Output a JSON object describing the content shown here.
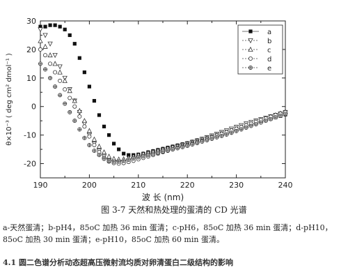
{
  "chart_data": {
    "type": "scatter",
    "xlabel": "波 长 (nm)",
    "ylabel": "θ×10⁻³ ( deg cm² dmol⁻¹ )",
    "xlim": [
      190,
      240
    ],
    "ylim": [
      -25,
      30
    ],
    "xticks": [
      "190",
      "200",
      "210",
      "220",
      "230",
      "240"
    ],
    "yticks": [
      "30",
      "20",
      "10",
      "0",
      "-10",
      "-20"
    ],
    "grid": false,
    "legend_position": "top-right",
    "series": [
      {
        "name": "a",
        "marker": "square-filled",
        "x": [
          190,
          191,
          192,
          193,
          194,
          195,
          196,
          197,
          198,
          199,
          200,
          201,
          202,
          203,
          204,
          205,
          206,
          207,
          208,
          209,
          210,
          211,
          212,
          213,
          214,
          215,
          216,
          217,
          218,
          219,
          220,
          221,
          222,
          223,
          224,
          225,
          226,
          227,
          228,
          229,
          230,
          231,
          232,
          233,
          234,
          235,
          236,
          237,
          238,
          239,
          240
        ],
        "y": [
          28,
          28,
          28.5,
          28.5,
          28,
          27,
          25,
          22,
          17,
          12,
          7,
          2,
          -3,
          -7,
          -10,
          -13,
          -15,
          -16.5,
          -17,
          -17,
          -16.8,
          -16.5,
          -16,
          -15.6,
          -15.2,
          -14.8,
          -14.4,
          -14,
          -13.6,
          -13.2,
          -12.8,
          -12.3,
          -11.8,
          -11.3,
          -10.8,
          -10.3,
          -9.8,
          -9.3,
          -8.8,
          -8.3,
          -7.8,
          -7.3,
          -6.8,
          -6.3,
          -5.8,
          -5.3,
          -4.8,
          -4.3,
          -3.8,
          -3.3,
          -2.8
        ]
      },
      {
        "name": "b",
        "marker": "triangle-down-open",
        "x": [
          190,
          191,
          192,
          193,
          194,
          195,
          196,
          197,
          198,
          199,
          200,
          201,
          202,
          203,
          204,
          205,
          206,
          207,
          208,
          209,
          210,
          211,
          212,
          213,
          214,
          215,
          216,
          217,
          218,
          219,
          220,
          221,
          222,
          223,
          224,
          225,
          226,
          227,
          228,
          229,
          230,
          231,
          232,
          233,
          234,
          235,
          236,
          237,
          238,
          239,
          240
        ],
        "y": [
          27,
          25,
          22,
          18,
          14,
          10,
          6,
          2,
          -2,
          -6,
          -10,
          -13,
          -15.5,
          -17.5,
          -19,
          -19.5,
          -19.6,
          -19.5,
          -19,
          -18.5,
          -18,
          -17.5,
          -17,
          -16.5,
          -16,
          -15.5,
          -15,
          -14.5,
          -14,
          -13.5,
          -13,
          -12.5,
          -12,
          -11.4,
          -10.8,
          -10.2,
          -9.6,
          -9,
          -8.4,
          -7.8,
          -7.2,
          -6.6,
          -6,
          -5.5,
          -5,
          -4.5,
          -4,
          -3.5,
          -3,
          -2.5,
          -2
        ]
      },
      {
        "name": "c",
        "marker": "triangle-up-open",
        "x": [
          190,
          191,
          192,
          193,
          194,
          195,
          196,
          197,
          198,
          199,
          200,
          201,
          202,
          203,
          204,
          205,
          206,
          207,
          208,
          209,
          210,
          211,
          212,
          213,
          214,
          215,
          216,
          217,
          218,
          219,
          220,
          221,
          222,
          223,
          224,
          225,
          226,
          227,
          228,
          229,
          230,
          231,
          232,
          233,
          234,
          235,
          236,
          237,
          238,
          239,
          240
        ],
        "y": [
          23,
          21,
          18,
          15,
          12,
          9,
          5.5,
          2,
          -1.5,
          -5,
          -8.5,
          -11.5,
          -14,
          -16,
          -17.5,
          -18.3,
          -18.5,
          -18.4,
          -18,
          -17.5,
          -17,
          -16.6,
          -16.2,
          -15.8,
          -15.4,
          -15,
          -14.6,
          -14.2,
          -13.8,
          -13.4,
          -13,
          -12.5,
          -12,
          -11.5,
          -11,
          -10.5,
          -10,
          -9.5,
          -9,
          -8.4,
          -7.8,
          -7.2,
          -6.6,
          -6,
          -5.4,
          -4.8,
          -4.2,
          -3.6,
          -3,
          -2.4,
          -1.8
        ]
      },
      {
        "name": "d",
        "marker": "circle-open",
        "x": [
          190,
          191,
          192,
          193,
          194,
          195,
          196,
          197,
          198,
          199,
          200,
          201,
          202,
          203,
          204,
          205,
          206,
          207,
          208,
          209,
          210,
          211,
          212,
          213,
          214,
          215,
          216,
          217,
          218,
          219,
          220,
          221,
          222,
          223,
          224,
          225,
          226,
          227,
          228,
          229,
          230,
          231,
          232,
          233,
          234,
          235,
          236,
          237,
          238,
          239,
          240
        ],
        "y": [
          20,
          18,
          15,
          12,
          9,
          6,
          3,
          0,
          -3.5,
          -7,
          -10.5,
          -13.5,
          -16,
          -18,
          -19.3,
          -19.8,
          -20,
          -19.8,
          -19.4,
          -19,
          -18.5,
          -18,
          -17.5,
          -17,
          -16.5,
          -16,
          -15.5,
          -15,
          -14.5,
          -14,
          -13.5,
          -13,
          -12.5,
          -12,
          -11.4,
          -10.8,
          -10.2,
          -9.6,
          -9,
          -8.4,
          -7.8,
          -7.2,
          -6.6,
          -6,
          -5.4,
          -4.8,
          -4.2,
          -3.6,
          -3,
          -2.5,
          -2
        ]
      },
      {
        "name": "e",
        "marker": "cross-circle",
        "x": [
          190,
          191,
          192,
          193,
          194,
          195,
          196,
          197,
          198,
          199,
          200,
          201,
          202,
          203,
          204,
          205,
          206,
          207,
          208,
          209,
          210,
          211,
          212,
          213,
          214,
          215,
          216,
          217,
          218,
          219,
          220,
          221,
          222,
          223,
          224,
          225,
          226,
          227,
          228,
          229,
          230,
          231,
          232,
          233,
          234,
          235,
          236,
          237,
          238,
          239,
          240
        ],
        "y": [
          15,
          13,
          10,
          7,
          4,
          1,
          -2,
          -5,
          -8,
          -11,
          -13.5,
          -15.5,
          -17,
          -18.3,
          -19,
          -19.3,
          -19.3,
          -19,
          -18.6,
          -18.2,
          -17.8,
          -17.4,
          -17,
          -16.6,
          -16.2,
          -15.8,
          -15.4,
          -15,
          -14.6,
          -14.2,
          -13.8,
          -13.3,
          -12.8,
          -12.3,
          -11.8,
          -11.3,
          -10.8,
          -10.3,
          -9.8,
          -9.2,
          -8.6,
          -8,
          -7.4,
          -6.8,
          -6.2,
          -5.6,
          -5,
          -4.4,
          -3.8,
          -3.2,
          -2.6
        ]
      }
    ]
  },
  "caption": "图 3-7 天然和热处理的蛋清的 CD 光谱",
  "legend_description": "a-天然蛋清；b-pH4，85oC 加热 36 min 蛋清；c-pH6，85oC 加热 36 min 蛋清；d-pH10，85oC 加热 30 min 蛋清；e-pH10，85oC 加热 60 min 蛋清。",
  "section_heading": "4.1 圆二色谱分析动态超高压微射流均质对卵清蛋白二级结构的影响"
}
